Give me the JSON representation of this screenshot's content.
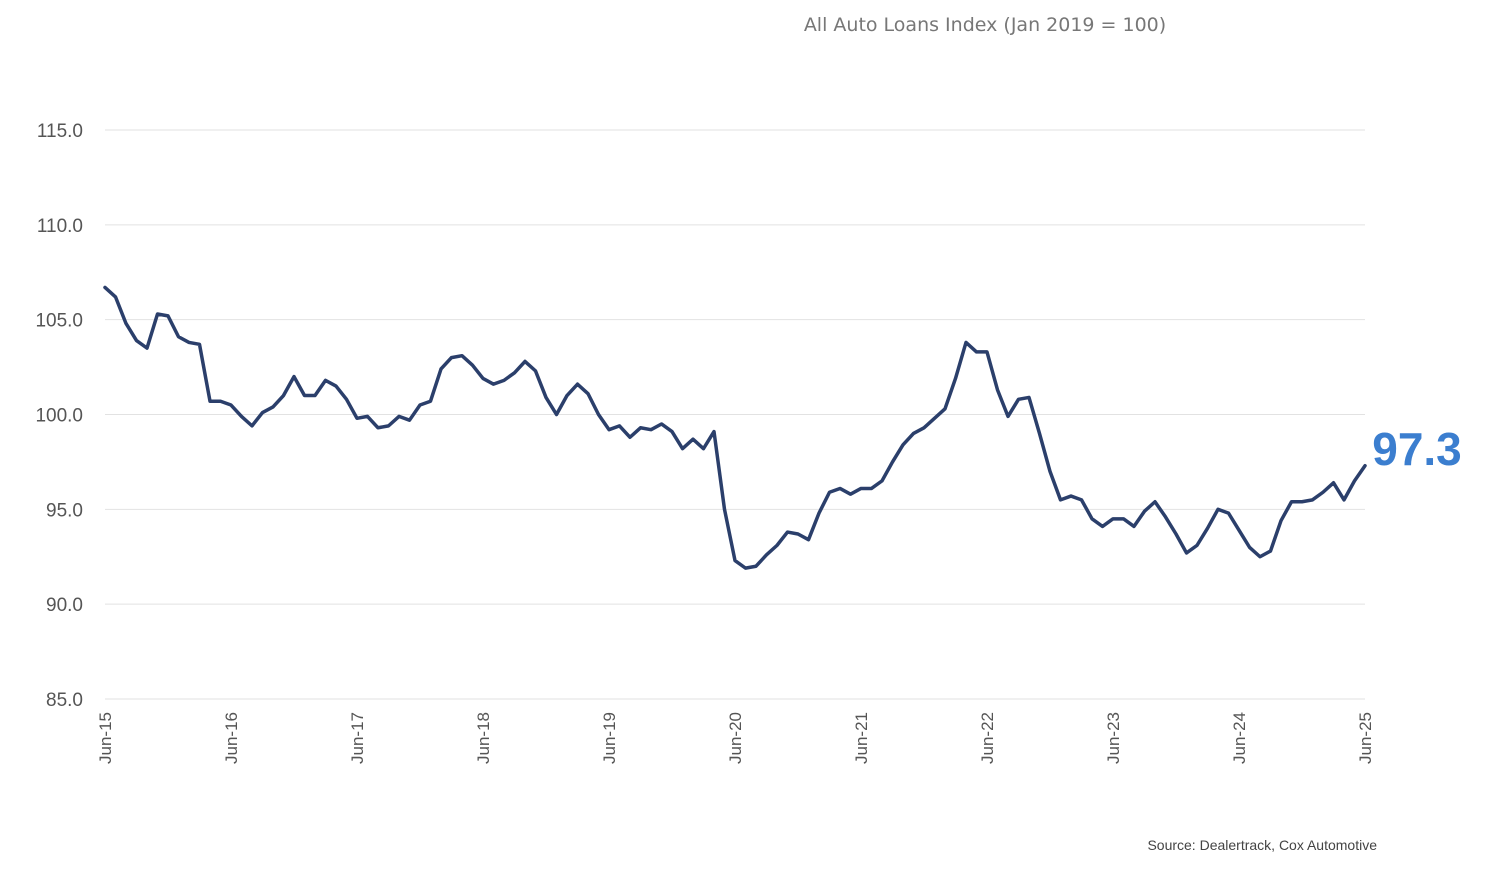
{
  "chart_data": {
    "type": "line",
    "title": "All Auto Loans Index (Jan 2019 = 100)",
    "xlabel": "",
    "ylabel": "",
    "ylim": [
      85,
      115
    ],
    "yticks": [
      85,
      90,
      95,
      100,
      105,
      110,
      115
    ],
    "ytick_labels": [
      "85.0",
      "90.0",
      "95.0",
      "100.0",
      "105.0",
      "110.0",
      "115.0"
    ],
    "xtick_labels": [
      "Jun-15",
      "Jun-16",
      "Jun-17",
      "Jun-18",
      "Jun-19",
      "Jun-20",
      "Jun-21",
      "Jun-22",
      "Jun-23",
      "Jun-24",
      "Jun-25"
    ],
    "x_start": "Jun-15",
    "frequency": "monthly",
    "grid": true,
    "legend": "none",
    "series": [
      {
        "name": "All Auto Loans Index",
        "values": [
          106.7,
          106.2,
          104.8,
          103.9,
          103.5,
          105.3,
          105.2,
          104.1,
          103.8,
          103.7,
          100.7,
          100.7,
          100.5,
          99.9,
          99.4,
          100.1,
          100.4,
          101.0,
          102.0,
          101.0,
          101.0,
          101.8,
          101.5,
          100.8,
          99.8,
          99.9,
          99.3,
          99.4,
          99.9,
          99.7,
          100.5,
          100.7,
          102.4,
          103.0,
          103.1,
          102.6,
          101.9,
          101.6,
          101.8,
          102.2,
          102.8,
          102.3,
          100.9,
          100.0,
          101.0,
          101.6,
          101.1,
          100.0,
          99.2,
          99.4,
          98.8,
          99.3,
          99.2,
          99.5,
          99.1,
          98.2,
          98.7,
          98.2,
          99.1,
          95.0,
          92.3,
          91.9,
          92.0,
          92.6,
          93.1,
          93.8,
          93.7,
          93.4,
          94.8,
          95.9,
          96.1,
          95.8,
          96.1,
          96.1,
          96.5,
          97.5,
          98.4,
          99.0,
          99.3,
          99.8,
          100.3,
          101.9,
          103.8,
          103.3,
          103.3,
          101.3,
          99.9,
          100.8,
          100.9,
          99.0,
          97.0,
          95.5,
          95.7,
          95.5,
          94.5,
          94.1,
          94.5,
          94.5,
          94.1,
          94.9,
          95.4,
          94.6,
          93.7,
          92.7,
          93.1,
          94.0,
          95.0,
          94.8,
          93.9,
          93.0,
          92.5,
          92.8,
          94.4,
          95.4,
          95.4,
          95.5,
          95.9,
          96.4,
          95.5,
          96.5,
          97.3
        ]
      }
    ],
    "last_value_label": "97.3",
    "source": "Source: Dealertrack, Cox Automotive"
  },
  "colors": {
    "line": "#2b3f6b",
    "last_value": "#3b7ecf"
  }
}
